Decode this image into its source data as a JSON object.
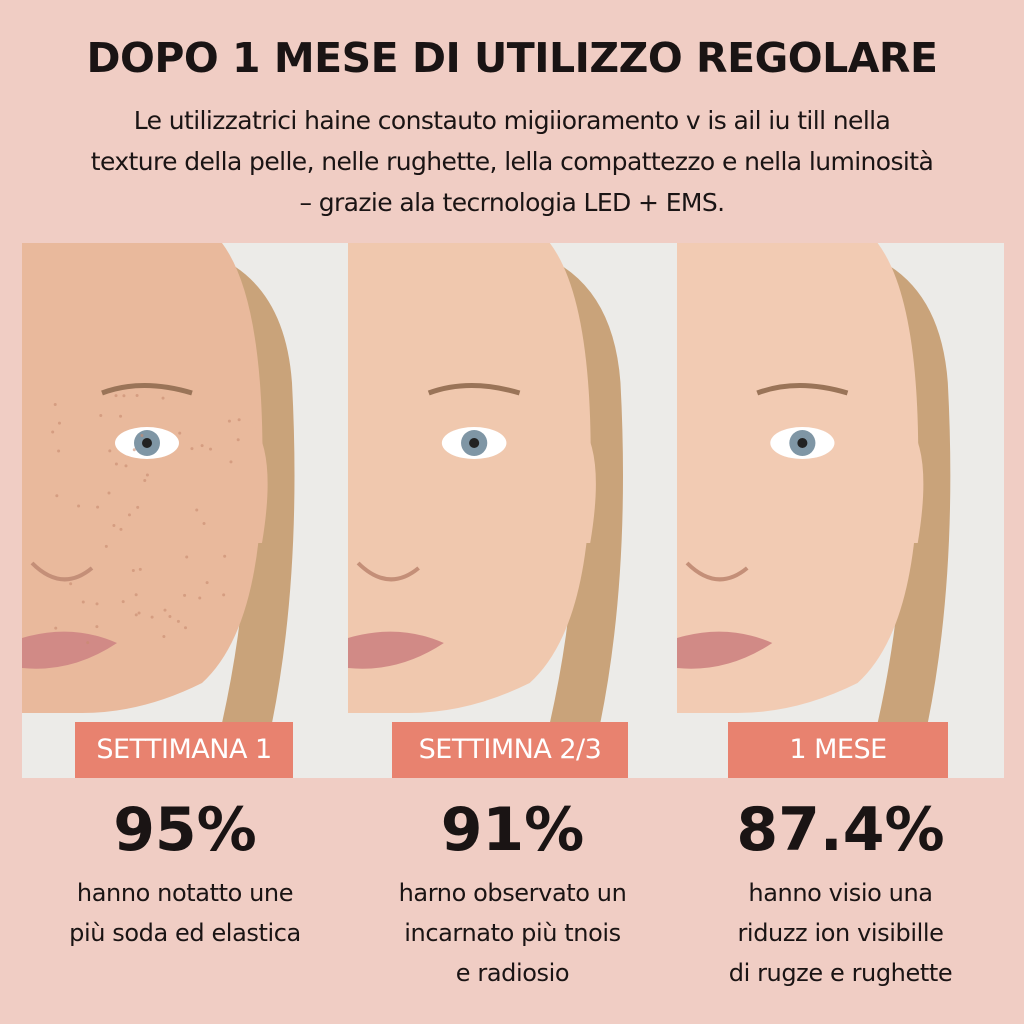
{
  "header": {
    "title": "DOPO 1 MESE DI UTILIZZO REGOLARE",
    "subtitle_lines": [
      "Le utilizzatrici haine constauto migiioramento v is ail iu till nella",
      "texture della pelle, nelle rughette, lella compattezzo e nella luminosità",
      "– grazie ala tecrnologia LED + EMS."
    ]
  },
  "colors": {
    "background": "#f0cdc4",
    "label_bg": "#e8826f",
    "text": "#1a1414"
  },
  "stages": [
    {
      "label": "SETTIMANA 1",
      "percent": "95%",
      "desc": [
        "hanno notatto une",
        "più soda ed elastica"
      ]
    },
    {
      "label": "SETTIMNA 2/3",
      "percent": "91%",
      "desc": [
        "harno observato un",
        "incarnato più tnois",
        "e radiosio"
      ]
    },
    {
      "label": "1 MESE",
      "percent": "87.4%",
      "desc": [
        "hanno visio una",
        "riduzz ion visibille",
        "di rugze e rughette"
      ]
    }
  ]
}
